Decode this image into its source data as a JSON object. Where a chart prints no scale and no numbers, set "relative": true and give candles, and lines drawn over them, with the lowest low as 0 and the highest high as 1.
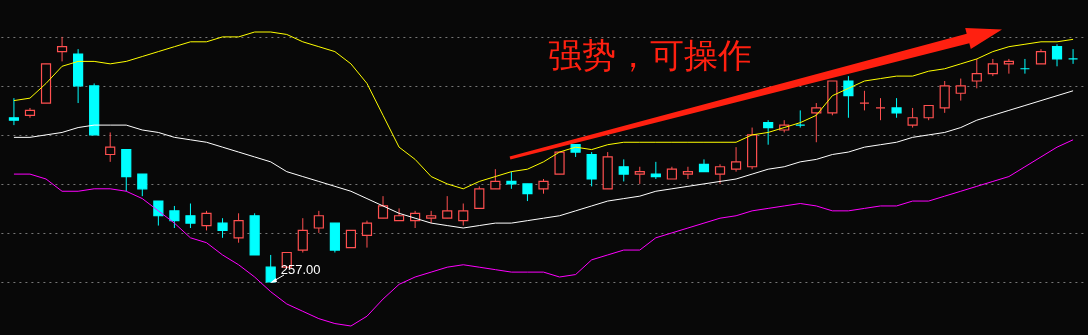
{
  "chart_data": {
    "type": "candlestick",
    "relative": true,
    "grid": true,
    "categories": [
      null,
      null,
      null,
      null,
      null,
      null,
      null,
      null,
      null,
      null,
      null,
      null,
      null,
      null,
      null,
      null,
      null,
      null,
      null,
      null,
      null,
      null,
      null,
      null,
      null,
      null,
      null,
      null,
      null,
      null,
      null,
      null,
      null,
      null,
      null,
      null,
      null,
      null,
      null,
      null,
      null,
      null,
      null,
      null,
      null,
      null,
      null,
      null,
      null,
      null,
      null,
      null,
      null,
      null,
      null,
      null,
      null,
      null,
      null,
      null,
      null,
      null,
      null,
      null,
      null,
      null,
      null
    ],
    "ohlc": [
      [
        0.67,
        0.75,
        0.64,
        0.66
      ],
      [
        0.68,
        0.71,
        0.67,
        0.7
      ],
      [
        0.73,
        0.89,
        0.73,
        0.89
      ],
      [
        0.94,
        1,
        0.9,
        0.96
      ],
      [
        0.93,
        0.95,
        0.73,
        0.8
      ],
      [
        0.8,
        0.81,
        0.6,
        0.6
      ],
      [
        0.52,
        0.61,
        0.49,
        0.55
      ],
      [
        0.54,
        0.54,
        0.37,
        0.43
      ],
      [
        0.44,
        0.44,
        0.35,
        0.38
      ],
      [
        0.33,
        0.33,
        0.23,
        0.27
      ],
      [
        0.29,
        0.31,
        0.22,
        0.25
      ],
      [
        0.27,
        0.32,
        0.22,
        0.24
      ],
      [
        0.23,
        0.29,
        0.21,
        0.28
      ],
      [
        0.24,
        0.26,
        0.18,
        0.21
      ],
      [
        0.18,
        0.28,
        0.16,
        0.25
      ],
      [
        0.27,
        0.28,
        0.11,
        0.11
      ],
      [
        0.06,
        0.11,
        0,
        0
      ],
      [
        0.06,
        0.12,
        0.06,
        0.12
      ],
      [
        0.13,
        0.26,
        0.12,
        0.21
      ],
      [
        0.22,
        0.29,
        0.2,
        0.27
      ],
      [
        0.24,
        0.24,
        0.12,
        0.13
      ],
      [
        0.14,
        0.21,
        0.14,
        0.21
      ],
      [
        0.19,
        0.25,
        0.14,
        0.24
      ],
      [
        0.26,
        0.35,
        0.26,
        0.31
      ],
      [
        0.25,
        0.3,
        0.25,
        0.27
      ],
      [
        0.25,
        0.29,
        0.22,
        0.28
      ],
      [
        0.26,
        0.29,
        0.24,
        0.27
      ],
      [
        0.26,
        0.35,
        0.26,
        0.29
      ],
      [
        0.25,
        0.32,
        0.23,
        0.29
      ],
      [
        0.3,
        0.39,
        0.3,
        0.38
      ],
      [
        0.38,
        0.46,
        0.38,
        0.41
      ],
      [
        0.41,
        0.45,
        0.38,
        0.4
      ],
      [
        0.4,
        0.4,
        0.33,
        0.36
      ],
      [
        0.38,
        0.42,
        0.36,
        0.41
      ],
      [
        0.44,
        0.53,
        0.44,
        0.53
      ],
      [
        0.56,
        0.56,
        0.51,
        0.53
      ],
      [
        0.52,
        0.53,
        0.39,
        0.42
      ],
      [
        0.38,
        0.53,
        0.38,
        0.51
      ],
      [
        0.47,
        0.5,
        0.41,
        0.44
      ],
      [
        0.44,
        0.47,
        0.4,
        0.45
      ],
      [
        0.44,
        0.49,
        0.42,
        0.43
      ],
      [
        0.42,
        0.47,
        0.42,
        0.46
      ],
      [
        0.44,
        0.47,
        0.42,
        0.45
      ],
      [
        0.48,
        0.5,
        0.45,
        0.45
      ],
      [
        0.44,
        0.48,
        0.4,
        0.47
      ],
      [
        0.46,
        0.55,
        0.45,
        0.49
      ],
      [
        0.47,
        0.63,
        0.46,
        0.6
      ],
      [
        0.65,
        0.66,
        0.56,
        0.63
      ],
      [
        0.62,
        0.66,
        0.61,
        0.64
      ],
      [
        0.64,
        0.7,
        0.63,
        0.64
      ],
      [
        0.69,
        0.73,
        0.57,
        0.71
      ],
      [
        0.69,
        0.82,
        0.68,
        0.82
      ],
      [
        0.82,
        0.84,
        0.67,
        0.76
      ],
      [
        0.73,
        0.78,
        0.7,
        0.73
      ],
      [
        0.71,
        0.75,
        0.66,
        0.71
      ],
      [
        0.71,
        0.75,
        0.67,
        0.69
      ],
      [
        0.64,
        0.71,
        0.63,
        0.67
      ],
      [
        0.67,
        0.72,
        0.66,
        0.72
      ],
      [
        0.71,
        0.82,
        0.69,
        0.8
      ],
      [
        0.77,
        0.83,
        0.74,
        0.8
      ],
      [
        0.82,
        0.91,
        0.79,
        0.85
      ],
      [
        0.85,
        0.91,
        0.84,
        0.89
      ],
      [
        0.89,
        0.91,
        0.85,
        0.9
      ],
      [
        0.87,
        0.91,
        0.85,
        0.87
      ],
      [
        0.89,
        0.95,
        0.89,
        0.94
      ],
      [
        0.96,
        0.97,
        0.88,
        0.91
      ],
      [
        0.91,
        0.95,
        0.89,
        0.91
      ]
    ],
    "colors": [
      "#00ffff",
      "#ff5050",
      "#ff5050",
      "#ff5050",
      "#00ffff",
      "#00ffff",
      "#ff5050",
      "#00ffff",
      "#00ffff",
      "#00ffff",
      "#00ffff",
      "#00ffff",
      "#ff5050",
      "#00ffff",
      "#ff5050",
      "#00ffff",
      "#00ffff",
      "#ff5050",
      "#ff5050",
      "#ff5050",
      "#00ffff",
      "#ff5050",
      "#ff5050",
      "#ff5050",
      "#ff5050",
      "#ff5050",
      "#ff5050",
      "#ff5050",
      "#ff5050",
      "#ff5050",
      "#ff5050",
      "#00ffff",
      "#00ffff",
      "#ff5050",
      "#ff5050",
      "#00ffff",
      "#00ffff",
      "#ff5050",
      "#00ffff",
      "#ff5050",
      "#00ffff",
      "#ff5050",
      "#ff5050",
      "#00ffff",
      "#ff5050",
      "#ff5050",
      "#ff5050",
      "#00ffff",
      "#ff5050",
      "#00ffff",
      "#ff5050",
      "#ff5050",
      "#00ffff",
      "#ff5050",
      "#ff5050",
      "#00ffff",
      "#ff5050",
      "#ff5050",
      "#ff5050",
      "#ff5050",
      "#ff5050",
      "#ff5050",
      "#ff5050",
      "#00ffff",
      "#ff5050",
      "#00ffff",
      "#00ffff"
    ],
    "series": [
      {
        "type": "line",
        "color": "#ffff00",
        "values": [
          0.74,
          0.75,
          0.81,
          0.88,
          0.9,
          0.9,
          0.89,
          0.9,
          0.92,
          0.94,
          0.96,
          0.98,
          0.98,
          1.0,
          1.0,
          1.02,
          1.02,
          1.01,
          0.98,
          0.96,
          0.94,
          0.89,
          0.81,
          0.68,
          0.55,
          0.5,
          0.43,
          0.4,
          0.38,
          0.41,
          0.43,
          0.45,
          0.46,
          0.49,
          0.53,
          0.55,
          0.54,
          0.56,
          0.57,
          0.57,
          0.57,
          0.57,
          0.57,
          0.57,
          0.57,
          0.57,
          0.6,
          0.61,
          0.63,
          0.65,
          0.68,
          0.76,
          0.79,
          0.82,
          0.83,
          0.84,
          0.84,
          0.86,
          0.87,
          0.89,
          0.91,
          0.94,
          0.96,
          0.97,
          0.98,
          0.98,
          0.99
        ]
      },
      {
        "type": "line",
        "color": "#ffffff",
        "values": [
          0.59,
          0.59,
          0.6,
          0.61,
          0.63,
          0.64,
          0.64,
          0.64,
          0.62,
          0.61,
          0.59,
          0.58,
          0.57,
          0.55,
          0.53,
          0.51,
          0.49,
          0.45,
          0.43,
          0.41,
          0.39,
          0.37,
          0.34,
          0.31,
          0.28,
          0.26,
          0.24,
          0.23,
          0.22,
          0.23,
          0.24,
          0.24,
          0.25,
          0.26,
          0.27,
          0.29,
          0.31,
          0.33,
          0.34,
          0.35,
          0.37,
          0.38,
          0.39,
          0.4,
          0.41,
          0.42,
          0.44,
          0.46,
          0.47,
          0.49,
          0.5,
          0.52,
          0.53,
          0.55,
          0.56,
          0.57,
          0.59,
          0.6,
          0.61,
          0.63,
          0.66,
          0.68,
          0.7,
          0.72,
          0.74,
          0.76,
          0.78
        ]
      },
      {
        "type": "line",
        "color": "#ff00ff",
        "values": [
          0.44,
          0.44,
          0.42,
          0.37,
          0.37,
          0.38,
          0.38,
          0.37,
          0.34,
          0.29,
          0.24,
          0.18,
          0.16,
          0.11,
          0.07,
          0.02,
          -0.04,
          -0.09,
          -0.12,
          -0.15,
          -0.17,
          -0.18,
          -0.14,
          -0.07,
          -0.01,
          0.02,
          0.04,
          0.06,
          0.07,
          0.06,
          0.05,
          0.04,
          0.04,
          0.04,
          0.02,
          0.03,
          0.09,
          0.11,
          0.13,
          0.13,
          0.18,
          0.2,
          0.22,
          0.24,
          0.26,
          0.27,
          0.29,
          0.3,
          0.31,
          0.32,
          0.31,
          0.29,
          0.29,
          0.3,
          0.31,
          0.31,
          0.33,
          0.33,
          0.35,
          0.37,
          0.39,
          0.41,
          0.43,
          0.47,
          0.51,
          0.55,
          0.58
        ]
      }
    ],
    "annotations": [
      "强势，可操作",
      "257.00"
    ]
  }
}
